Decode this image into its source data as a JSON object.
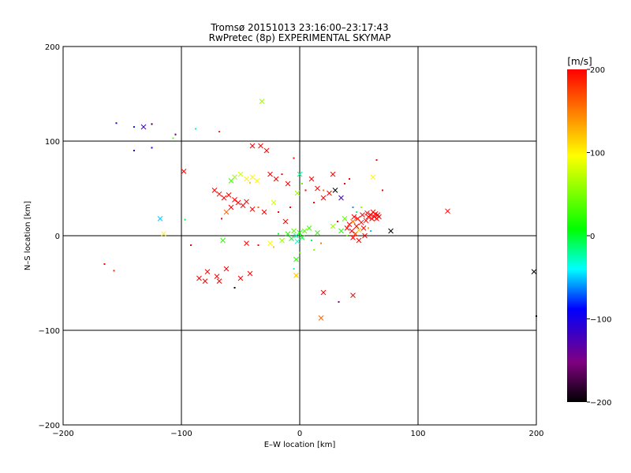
{
  "chart_data": {
    "type": "scatter",
    "title": "Tromsø 20151013 23:16:00–23:17:43",
    "subtitle": "RwPretec (8p) EXPERIMENTAL SKYMAP",
    "xlabel": "E–W location [km]",
    "ylabel": "N–S location [km]",
    "xlim": [
      -200,
      200
    ],
    "ylim": [
      -200,
      200
    ],
    "xticks": [
      -200,
      -100,
      0,
      100,
      200
    ],
    "yticks": [
      -200,
      -100,
      0,
      100,
      200
    ],
    "xtick_labels": [
      "−200",
      "−100",
      "0",
      "100",
      "200"
    ],
    "ytick_labels": [
      "−200",
      "−100",
      "0",
      "100",
      "200"
    ],
    "grid": true,
    "grid_lines": [
      -100,
      0,
      100
    ],
    "colorbar": {
      "label": "[m/s]",
      "min": -200,
      "max": 200,
      "ticks": [
        200,
        100,
        0,
        -100,
        -200
      ],
      "tick_labels": [
        "200",
        "100",
        "0",
        "−100",
        "−200"
      ],
      "colors": [
        "#000000",
        "#800080",
        "#0000ff",
        "#00ffff",
        "#00ff00",
        "#ffff00",
        "#ff8000",
        "#ff0000"
      ]
    },
    "points": [
      {
        "x": -155,
        "y": 119,
        "v": -110,
        "m": "dot"
      },
      {
        "x": -140,
        "y": 115,
        "v": -80,
        "m": "dot"
      },
      {
        "x": -132,
        "y": 115,
        "v": -120,
        "m": "x"
      },
      {
        "x": -125,
        "y": 118,
        "v": -180,
        "m": "dot"
      },
      {
        "x": -140,
        "y": 90,
        "v": -120,
        "m": "dot"
      },
      {
        "x": -125,
        "y": 93,
        "v": -100,
        "m": "dot"
      },
      {
        "x": -105,
        "y": 107,
        "v": -170,
        "m": "dot"
      },
      {
        "x": -107,
        "y": 103,
        "v": 40,
        "m": "dot"
      },
      {
        "x": -88,
        "y": 113,
        "v": -30,
        "m": "dot"
      },
      {
        "x": -68,
        "y": 110,
        "v": 180,
        "m": "dot"
      },
      {
        "x": -32,
        "y": 142,
        "v": 60,
        "m": "x"
      },
      {
        "x": -118,
        "y": 18,
        "v": -50,
        "m": "x"
      },
      {
        "x": -115,
        "y": 2,
        "v": 100,
        "m": "x"
      },
      {
        "x": -97,
        "y": 17,
        "v": 0,
        "m": "dot"
      },
      {
        "x": -98,
        "y": 68,
        "v": 200,
        "m": "x"
      },
      {
        "x": -165,
        "y": -30,
        "v": 200,
        "m": "dot"
      },
      {
        "x": -157,
        "y": -37,
        "v": 190,
        "m": "dot"
      },
      {
        "x": -92,
        "y": -10,
        "v": 200,
        "m": "dot"
      },
      {
        "x": -85,
        "y": -45,
        "v": 200,
        "m": "x"
      },
      {
        "x": -80,
        "y": -48,
        "v": 200,
        "m": "x"
      },
      {
        "x": -78,
        "y": -38,
        "v": 200,
        "m": "x"
      },
      {
        "x": -70,
        "y": -43,
        "v": 200,
        "m": "x"
      },
      {
        "x": -68,
        "y": -48,
        "v": 200,
        "m": "x"
      },
      {
        "x": -62,
        "y": -35,
        "v": 200,
        "m": "x"
      },
      {
        "x": -55,
        "y": -55,
        "v": -200,
        "m": "dot"
      },
      {
        "x": -50,
        "y": -45,
        "v": 200,
        "m": "x"
      },
      {
        "x": -42,
        "y": -40,
        "v": 200,
        "m": "x"
      },
      {
        "x": -65,
        "y": -5,
        "v": 20,
        "m": "x"
      },
      {
        "x": -45,
        "y": -8,
        "v": 200,
        "m": "x"
      },
      {
        "x": -35,
        "y": -10,
        "v": 200,
        "m": "dot"
      },
      {
        "x": -72,
        "y": 48,
        "v": 200,
        "m": "x"
      },
      {
        "x": -68,
        "y": 44,
        "v": 200,
        "m": "x"
      },
      {
        "x": -64,
        "y": 40,
        "v": 200,
        "m": "x"
      },
      {
        "x": -60,
        "y": 43,
        "v": 200,
        "m": "x"
      },
      {
        "x": -55,
        "y": 38,
        "v": 200,
        "m": "x"
      },
      {
        "x": -52,
        "y": 35,
        "v": 200,
        "m": "x"
      },
      {
        "x": -48,
        "y": 32,
        "v": 200,
        "m": "x"
      },
      {
        "x": -45,
        "y": 36,
        "v": 200,
        "m": "x"
      },
      {
        "x": -58,
        "y": 30,
        "v": 200,
        "m": "x"
      },
      {
        "x": -62,
        "y": 25,
        "v": 160,
        "m": "x"
      },
      {
        "x": -66,
        "y": 18,
        "v": 200,
        "m": "dot"
      },
      {
        "x": -40,
        "y": 28,
        "v": 200,
        "m": "x"
      },
      {
        "x": -35,
        "y": 30,
        "v": 160,
        "m": "dot"
      },
      {
        "x": -30,
        "y": 25,
        "v": 200,
        "m": "x"
      },
      {
        "x": -55,
        "y": 62,
        "v": 60,
        "m": "x"
      },
      {
        "x": -50,
        "y": 65,
        "v": 80,
        "m": "x"
      },
      {
        "x": -45,
        "y": 60,
        "v": 100,
        "m": "x"
      },
      {
        "x": -40,
        "y": 62,
        "v": 100,
        "m": "x"
      },
      {
        "x": -36,
        "y": 58,
        "v": 100,
        "m": "x"
      },
      {
        "x": -42,
        "y": 56,
        "v": 120,
        "m": "dot"
      },
      {
        "x": -58,
        "y": 58,
        "v": 30,
        "m": "x"
      },
      {
        "x": -40,
        "y": 95,
        "v": 200,
        "m": "x"
      },
      {
        "x": -33,
        "y": 95,
        "v": 200,
        "m": "x"
      },
      {
        "x": -28,
        "y": 90,
        "v": 200,
        "m": "x"
      },
      {
        "x": -25,
        "y": 65,
        "v": 200,
        "m": "x"
      },
      {
        "x": -20,
        "y": 60,
        "v": 200,
        "m": "x"
      },
      {
        "x": -15,
        "y": 65,
        "v": 200,
        "m": "dot"
      },
      {
        "x": -10,
        "y": 55,
        "v": 200,
        "m": "x"
      },
      {
        "x": -22,
        "y": 35,
        "v": 80,
        "m": "x"
      },
      {
        "x": -18,
        "y": 25,
        "v": 200,
        "m": "dot"
      },
      {
        "x": -12,
        "y": 15,
        "v": 200,
        "m": "x"
      },
      {
        "x": -8,
        "y": 30,
        "v": 200,
        "m": "dot"
      },
      {
        "x": -2,
        "y": 45,
        "v": 60,
        "m": "x"
      },
      {
        "x": 0,
        "y": 65,
        "v": -20,
        "m": "x"
      },
      {
        "x": 2,
        "y": 55,
        "v": 40,
        "m": "dot"
      },
      {
        "x": 5,
        "y": 48,
        "v": 200,
        "m": "dot"
      },
      {
        "x": -5,
        "y": 82,
        "v": 200,
        "m": "dot"
      },
      {
        "x": 10,
        "y": 60,
        "v": 200,
        "m": "x"
      },
      {
        "x": 15,
        "y": 50,
        "v": 200,
        "m": "x"
      },
      {
        "x": 20,
        "y": 48,
        "v": 150,
        "m": "dot"
      },
      {
        "x": 25,
        "y": 45,
        "v": 200,
        "m": "x"
      },
      {
        "x": 28,
        "y": 65,
        "v": 200,
        "m": "x"
      },
      {
        "x": 30,
        "y": 48,
        "v": -200,
        "m": "x"
      },
      {
        "x": 35,
        "y": 40,
        "v": -120,
        "m": "x"
      },
      {
        "x": 38,
        "y": 55,
        "v": 200,
        "m": "dot"
      },
      {
        "x": 42,
        "y": 60,
        "v": 200,
        "m": "dot"
      },
      {
        "x": 45,
        "y": 30,
        "v": -60,
        "m": "dot"
      },
      {
        "x": 20,
        "y": 40,
        "v": 200,
        "m": "x"
      },
      {
        "x": 12,
        "y": 35,
        "v": 200,
        "m": "dot"
      },
      {
        "x": -10,
        "y": 2,
        "v": 20,
        "m": "x"
      },
      {
        "x": -7,
        "y": -3,
        "v": 0,
        "m": "x"
      },
      {
        "x": -5,
        "y": 5,
        "v": 40,
        "m": "x"
      },
      {
        "x": -3,
        "y": 0,
        "v": -20,
        "m": "x"
      },
      {
        "x": 0,
        "y": 3,
        "v": 20,
        "m": "x"
      },
      {
        "x": 2,
        "y": -2,
        "v": 0,
        "m": "x"
      },
      {
        "x": 4,
        "y": 5,
        "v": 40,
        "m": "x"
      },
      {
        "x": -2,
        "y": -6,
        "v": -30,
        "m": "x"
      },
      {
        "x": -15,
        "y": -5,
        "v": 60,
        "m": "x"
      },
      {
        "x": -18,
        "y": 2,
        "v": 0,
        "m": "dot"
      },
      {
        "x": -25,
        "y": -8,
        "v": 100,
        "m": "x"
      },
      {
        "x": -22,
        "y": -12,
        "v": 120,
        "m": "dot"
      },
      {
        "x": 8,
        "y": 8,
        "v": 30,
        "m": "x"
      },
      {
        "x": 10,
        "y": -5,
        "v": -10,
        "m": "dot"
      },
      {
        "x": 15,
        "y": 3,
        "v": 20,
        "m": "x"
      },
      {
        "x": 18,
        "y": -8,
        "v": 150,
        "m": "dot"
      },
      {
        "x": 12,
        "y": -15,
        "v": 60,
        "m": "dot"
      },
      {
        "x": -3,
        "y": -25,
        "v": 20,
        "m": "x"
      },
      {
        "x": 0,
        "y": -18,
        "v": 40,
        "m": "dot"
      },
      {
        "x": -3,
        "y": -42,
        "v": 120,
        "m": "x"
      },
      {
        "x": -5,
        "y": -35,
        "v": -30,
        "m": "dot"
      },
      {
        "x": 20,
        "y": -60,
        "v": 200,
        "m": "x"
      },
      {
        "x": 18,
        "y": -87,
        "v": 160,
        "m": "x"
      },
      {
        "x": 33,
        "y": -70,
        "v": -150,
        "m": "dot"
      },
      {
        "x": 45,
        "y": -63,
        "v": 200,
        "m": "x"
      },
      {
        "x": 28,
        "y": 10,
        "v": 60,
        "m": "x"
      },
      {
        "x": 32,
        "y": 15,
        "v": 200,
        "m": "dot"
      },
      {
        "x": 35,
        "y": 5,
        "v": 20,
        "m": "x"
      },
      {
        "x": 38,
        "y": 18,
        "v": 40,
        "m": "x"
      },
      {
        "x": 40,
        "y": 8,
        "v": 200,
        "m": "x"
      },
      {
        "x": 42,
        "y": 12,
        "v": 200,
        "m": "x"
      },
      {
        "x": 44,
        "y": 5,
        "v": 200,
        "m": "x"
      },
      {
        "x": 45,
        "y": 15,
        "v": 160,
        "m": "x"
      },
      {
        "x": 46,
        "y": 20,
        "v": 200,
        "m": "x"
      },
      {
        "x": 47,
        "y": 2,
        "v": 180,
        "m": "x"
      },
      {
        "x": 48,
        "y": 10,
        "v": 200,
        "m": "x"
      },
      {
        "x": 49,
        "y": 18,
        "v": 200,
        "m": "x"
      },
      {
        "x": 50,
        "y": 6,
        "v": 120,
        "m": "x"
      },
      {
        "x": 52,
        "y": 14,
        "v": 200,
        "m": "x"
      },
      {
        "x": 53,
        "y": 22,
        "v": 200,
        "m": "x"
      },
      {
        "x": 54,
        "y": 8,
        "v": 200,
        "m": "x"
      },
      {
        "x": 56,
        "y": 16,
        "v": 200,
        "m": "x"
      },
      {
        "x": 57,
        "y": 24,
        "v": 200,
        "m": "x"
      },
      {
        "x": 58,
        "y": 20,
        "v": 200,
        "m": "x"
      },
      {
        "x": 60,
        "y": 22,
        "v": 200,
        "m": "x"
      },
      {
        "x": 61,
        "y": 18,
        "v": 200,
        "m": "x"
      },
      {
        "x": 62,
        "y": 25,
        "v": 200,
        "m": "x"
      },
      {
        "x": 63,
        "y": 20,
        "v": 200,
        "m": "x"
      },
      {
        "x": 64,
        "y": 23,
        "v": 200,
        "m": "x"
      },
      {
        "x": 65,
        "y": 18,
        "v": 200,
        "m": "x"
      },
      {
        "x": 66,
        "y": 22,
        "v": 200,
        "m": "x"
      },
      {
        "x": 67,
        "y": 20,
        "v": 200,
        "m": "x"
      },
      {
        "x": 45,
        "y": -2,
        "v": 200,
        "m": "x"
      },
      {
        "x": 50,
        "y": -5,
        "v": 200,
        "m": "x"
      },
      {
        "x": 55,
        "y": 0,
        "v": 200,
        "m": "x"
      },
      {
        "x": 40,
        "y": 0,
        "v": 50,
        "m": "dot"
      },
      {
        "x": 48,
        "y": 25,
        "v": -20,
        "m": "dot"
      },
      {
        "x": 52,
        "y": 30,
        "v": 60,
        "m": "dot"
      },
      {
        "x": 58,
        "y": 8,
        "v": 140,
        "m": "dot"
      },
      {
        "x": 60,
        "y": 5,
        "v": -50,
        "m": "dot"
      },
      {
        "x": 62,
        "y": 62,
        "v": 100,
        "m": "x"
      },
      {
        "x": 65,
        "y": 80,
        "v": 200,
        "m": "dot"
      },
      {
        "x": 70,
        "y": 48,
        "v": 200,
        "m": "dot"
      },
      {
        "x": 77,
        "y": 5,
        "v": -200,
        "m": "x"
      },
      {
        "x": 125,
        "y": 26,
        "v": 200,
        "m": "x"
      },
      {
        "x": 198,
        "y": -38,
        "v": -200,
        "m": "x"
      },
      {
        "x": 200,
        "y": -85,
        "v": -200,
        "m": "dot"
      }
    ]
  }
}
